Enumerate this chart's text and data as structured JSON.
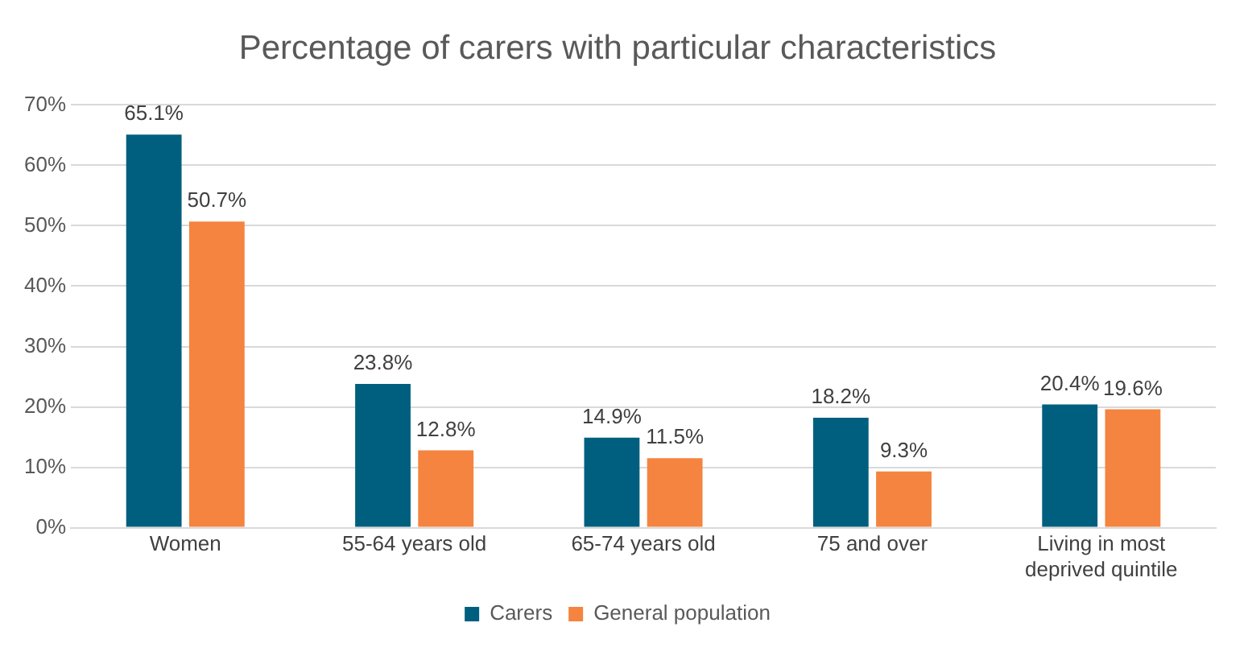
{
  "chart_data": {
    "type": "bar",
    "title": "Percentage of carers with particular characteristics",
    "categories": [
      "Women",
      "55-64 years old",
      "65-74 years old",
      "75 and over",
      "Living in most deprived quintile"
    ],
    "series": [
      {
        "name": "Carers",
        "color": "#005f7f",
        "values": [
          65.1,
          23.8,
          14.9,
          18.2,
          20.4
        ],
        "value_labels": [
          "65.1%",
          "23.8%",
          "14.9%",
          "18.2%",
          "20.4%"
        ]
      },
      {
        "name": "General population",
        "color": "#f4843f",
        "values": [
          50.7,
          12.8,
          11.5,
          9.3,
          19.6
        ],
        "value_labels": [
          "50.7%",
          "12.8%",
          "11.5%",
          "9.3%",
          "19.6%"
        ]
      }
    ],
    "ylim": [
      0,
      70
    ],
    "yticks": [
      {
        "value": 0,
        "label": "0%"
      },
      {
        "value": 10,
        "label": "10%"
      },
      {
        "value": 20,
        "label": "20%"
      },
      {
        "value": 30,
        "label": "30%"
      },
      {
        "value": 40,
        "label": "40%"
      },
      {
        "value": 50,
        "label": "50%"
      },
      {
        "value": 60,
        "label": "60%"
      },
      {
        "value": 70,
        "label": "70%"
      }
    ],
    "grid": "y",
    "legend": "bottom"
  }
}
